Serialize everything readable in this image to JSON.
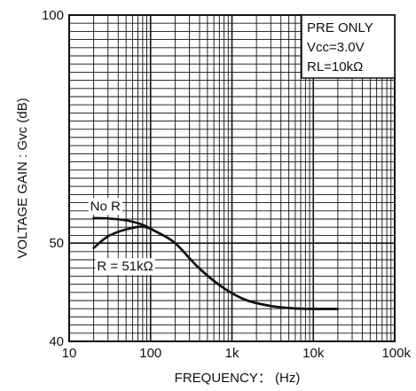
{
  "chart_data": {
    "type": "line",
    "x_scale": "log",
    "xlim": [
      10,
      100000
    ],
    "ylim": [
      40,
      100
    ],
    "y_ticks": [
      40,
      50,
      100
    ],
    "y_tick_labels": [
      "40",
      "50",
      "100"
    ],
    "y_axis_note": "axis uses a nonlinear (log-style) gain scale; only 40, 50, 100 labeled",
    "x_ticks": [
      10,
      100,
      1000,
      10000,
      100000
    ],
    "x_tick_labels": [
      "10",
      "100",
      "1k",
      "10k",
      "100k"
    ],
    "xlabel": "FREQUENCY： (Hz)",
    "ylabel": "VOLTAGE GAIN : Gvc (dB)",
    "grid": true,
    "legend_box": {
      "line1": "PRE ONLY",
      "line2": "Vcc=3.0V",
      "line3": "RL=10kΩ",
      "placement": "top-right"
    },
    "series": [
      {
        "name": "No R",
        "points": [
          [
            20,
            55.5
          ],
          [
            30,
            55.4
          ],
          [
            50,
            55.0
          ],
          [
            80,
            54.0
          ],
          [
            120,
            52.4
          ],
          [
            200,
            50.0
          ],
          [
            400,
            47.4
          ],
          [
            800,
            45.4
          ],
          [
            1500,
            44.2
          ],
          [
            3000,
            43.6
          ],
          [
            6000,
            43.35
          ],
          [
            10000,
            43.3
          ],
          [
            20000,
            43.3
          ]
        ]
      },
      {
        "name": "R = 51kΩ",
        "points": [
          [
            20,
            49.5
          ],
          [
            30,
            51.5
          ],
          [
            50,
            53.0
          ],
          [
            80,
            53.6
          ],
          [
            120,
            52.4
          ],
          [
            200,
            50.0
          ],
          [
            400,
            47.4
          ],
          [
            800,
            45.4
          ],
          [
            1500,
            44.2
          ],
          [
            3000,
            43.6
          ],
          [
            6000,
            43.35
          ],
          [
            10000,
            43.3
          ],
          [
            20000,
            43.3
          ]
        ]
      }
    ],
    "annotations": [
      {
        "text": "No R",
        "series": "No R"
      },
      {
        "text": "R = 51kΩ",
        "series": "R = 51kΩ"
      }
    ]
  }
}
